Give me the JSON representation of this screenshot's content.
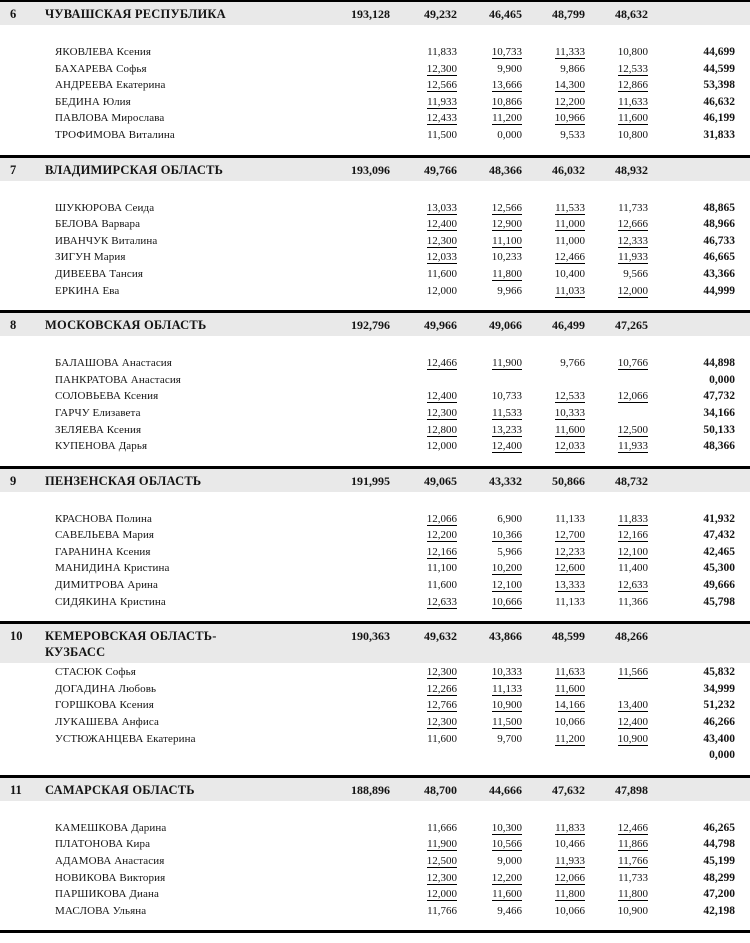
{
  "document": {
    "kind": "team-results-continuation-page"
  },
  "sections": [
    {
      "rank": "6",
      "team": "ЧУВАШСКАЯ РЕСПУБЛИКА",
      "team_total": "193,128",
      "team_scores": [
        "49,232",
        "46,465",
        "48,799",
        "48,632"
      ],
      "athletes": [
        {
          "name": "ЯКОВЛЕВА Ксения",
          "scores": [
            "11,833",
            "10,733",
            "11,333",
            "10,800"
          ],
          "underlined": [
            false,
            true,
            true,
            false
          ],
          "total": "44,699"
        },
        {
          "name": "БАХАРЕВА Софья",
          "scores": [
            "12,300",
            "9,900",
            "9,866",
            "12,533"
          ],
          "underlined": [
            true,
            false,
            false,
            true
          ],
          "total": "44,599"
        },
        {
          "name": "АНДРЕЕВА Екатерина",
          "scores": [
            "12,566",
            "13,666",
            "14,300",
            "12,866"
          ],
          "underlined": [
            true,
            true,
            true,
            true
          ],
          "total": "53,398"
        },
        {
          "name": "БЕДИНА Юлия",
          "scores": [
            "11,933",
            "10,866",
            "12,200",
            "11,633"
          ],
          "underlined": [
            true,
            true,
            true,
            true
          ],
          "total": "46,632"
        },
        {
          "name": "ПАВЛОВА Мирослава",
          "scores": [
            "12,433",
            "11,200",
            "10,966",
            "11,600"
          ],
          "underlined": [
            true,
            true,
            true,
            true
          ],
          "total": "46,199"
        },
        {
          "name": "ТРОФИМОВА Виталина",
          "scores": [
            "11,500",
            "0,000",
            "9,533",
            "10,800"
          ],
          "underlined": [
            false,
            false,
            false,
            false
          ],
          "total": "31,833"
        }
      ]
    },
    {
      "rank": "7",
      "team": "ВЛАДИМИРСКАЯ ОБЛАСТЬ",
      "team_total": "193,096",
      "team_scores": [
        "49,766",
        "48,366",
        "46,032",
        "48,932"
      ],
      "athletes": [
        {
          "name": "ШУКЮРОВА Сеида",
          "scores": [
            "13,033",
            "12,566",
            "11,533",
            "11,733"
          ],
          "underlined": [
            true,
            true,
            true,
            false
          ],
          "total": "48,865"
        },
        {
          "name": "БЕЛОВА Варвара",
          "scores": [
            "12,400",
            "12,900",
            "11,000",
            "12,666"
          ],
          "underlined": [
            true,
            true,
            true,
            true
          ],
          "total": "48,966"
        },
        {
          "name": "ИВАНЧУК Виталина",
          "scores": [
            "12,300",
            "11,100",
            "11,000",
            "12,333"
          ],
          "underlined": [
            true,
            true,
            false,
            true
          ],
          "total": "46,733"
        },
        {
          "name": "ЗИГУН Мария",
          "scores": [
            "12,033",
            "10,233",
            "12,466",
            "11,933"
          ],
          "underlined": [
            true,
            false,
            true,
            true
          ],
          "total": "46,665"
        },
        {
          "name": "ДИВЕЕВА Тансия",
          "scores": [
            "11,600",
            "11,800",
            "10,400",
            "9,566"
          ],
          "underlined": [
            false,
            true,
            false,
            false
          ],
          "total": "43,366"
        },
        {
          "name": "ЕРКИНА Ева",
          "scores": [
            "12,000",
            "9,966",
            "11,033",
            "12,000"
          ],
          "underlined": [
            false,
            false,
            true,
            true
          ],
          "total": "44,999"
        }
      ]
    },
    {
      "rank": "8",
      "team": "МОСКОВСКАЯ ОБЛАСТЬ",
      "team_total": "192,796",
      "team_scores": [
        "49,966",
        "49,066",
        "46,499",
        "47,265"
      ],
      "athletes": [
        {
          "name": "БАЛАШОВА Анастасия",
          "scores": [
            "12,466",
            "11,900",
            "9,766",
            "10,766"
          ],
          "underlined": [
            true,
            true,
            false,
            true
          ],
          "total": "44,898"
        },
        {
          "name": "ПАНКРАТОВА Анастасия",
          "scores": [
            "",
            "",
            "",
            ""
          ],
          "underlined": [
            false,
            false,
            false,
            false
          ],
          "total": "0,000"
        },
        {
          "name": "СОЛОВЬЕВА Ксения",
          "scores": [
            "12,400",
            "10,733",
            "12,533",
            "12,066"
          ],
          "underlined": [
            true,
            false,
            true,
            true
          ],
          "total": "47,732"
        },
        {
          "name": "ГАРЧУ Елизавета",
          "scores": [
            "12,300",
            "11,533",
            "10,333",
            ""
          ],
          "underlined": [
            true,
            true,
            true,
            false
          ],
          "total": "34,166"
        },
        {
          "name": "ЗЕЛЯЕВА Ксения",
          "scores": [
            "12,800",
            "13,233",
            "11,600",
            "12,500"
          ],
          "underlined": [
            true,
            true,
            true,
            true
          ],
          "total": "50,133"
        },
        {
          "name": "КУПЕНОВА Дарья",
          "scores": [
            "12,000",
            "12,400",
            "12,033",
            "11,933"
          ],
          "underlined": [
            false,
            true,
            true,
            true
          ],
          "total": "48,366"
        }
      ]
    },
    {
      "rank": "9",
      "team": "ПЕНЗЕНСКАЯ ОБЛАСТЬ",
      "team_total": "191,995",
      "team_scores": [
        "49,065",
        "43,332",
        "50,866",
        "48,732"
      ],
      "athletes": [
        {
          "name": "КРАСНОВА Полина",
          "scores": [
            "12,066",
            "6,900",
            "11,133",
            "11,833"
          ],
          "underlined": [
            true,
            false,
            false,
            true
          ],
          "total": "41,932"
        },
        {
          "name": "САВЕЛЬЕВА Мария",
          "scores": [
            "12,200",
            "10,366",
            "12,700",
            "12,166"
          ],
          "underlined": [
            true,
            true,
            true,
            true
          ],
          "total": "47,432"
        },
        {
          "name": "ГАРАНИНА Ксения",
          "scores": [
            "12,166",
            "5,966",
            "12,233",
            "12,100"
          ],
          "underlined": [
            true,
            false,
            true,
            true
          ],
          "total": "42,465"
        },
        {
          "name": "МАНИДИНА Кристина",
          "scores": [
            "11,100",
            "10,200",
            "12,600",
            "11,400"
          ],
          "underlined": [
            false,
            true,
            true,
            false
          ],
          "total": "45,300"
        },
        {
          "name": "ДИМИТРОВА Арина",
          "scores": [
            "11,600",
            "12,100",
            "13,333",
            "12,633"
          ],
          "underlined": [
            false,
            true,
            true,
            true
          ],
          "total": "49,666"
        },
        {
          "name": "СИДЯКИНА Кристина",
          "scores": [
            "12,633",
            "10,666",
            "11,133",
            "11,366"
          ],
          "underlined": [
            true,
            true,
            false,
            false
          ],
          "total": "45,798"
        }
      ]
    },
    {
      "rank": "10",
      "team": "КЕМЕРОВСКАЯ ОБЛАСТЬ-\nКУЗБАСС",
      "team_total": "190,363",
      "team_scores": [
        "49,632",
        "43,866",
        "48,599",
        "48,266"
      ],
      "athletes": [
        {
          "name": "СТАСЮК Софья",
          "scores": [
            "12,300",
            "10,333",
            "11,633",
            "11,566"
          ],
          "underlined": [
            true,
            true,
            true,
            true
          ],
          "total": "45,832"
        },
        {
          "name": "ДОГАДИНА Любовь",
          "scores": [
            "12,266",
            "11,133",
            "11,600",
            ""
          ],
          "underlined": [
            true,
            true,
            true,
            false
          ],
          "total": "34,999"
        },
        {
          "name": "ГОРШКОВА Ксения",
          "scores": [
            "12,766",
            "10,900",
            "14,166",
            "13,400"
          ],
          "underlined": [
            true,
            true,
            true,
            true
          ],
          "total": "51,232"
        },
        {
          "name": "ЛУКАШЕВА Анфиса",
          "scores": [
            "12,300",
            "11,500",
            "10,066",
            "12,400"
          ],
          "underlined": [
            true,
            true,
            false,
            true
          ],
          "total": "46,266"
        },
        {
          "name": "УСТЮЖАНЦЕВА Екатерина",
          "scores": [
            "11,600",
            "9,700",
            "11,200",
            "10,900"
          ],
          "underlined": [
            false,
            false,
            true,
            true
          ],
          "total": "43,400"
        },
        {
          "name": "",
          "scores": [
            "",
            "",
            "",
            ""
          ],
          "underlined": [
            false,
            false,
            false,
            false
          ],
          "total": "0,000"
        }
      ]
    },
    {
      "rank": "11",
      "team": "САМАРСКАЯ ОБЛАСТЬ",
      "team_total": "188,896",
      "team_scores": [
        "48,700",
        "44,666",
        "47,632",
        "47,898"
      ],
      "athletes": [
        {
          "name": "КАМЕШКОВА Дарина",
          "scores": [
            "11,666",
            "10,300",
            "11,833",
            "12,466"
          ],
          "underlined": [
            false,
            true,
            true,
            true
          ],
          "total": "46,265"
        },
        {
          "name": "ПЛАТОНОВА Кира",
          "scores": [
            "11,900",
            "10,566",
            "10,466",
            "11,866"
          ],
          "underlined": [
            true,
            true,
            false,
            true
          ],
          "total": "44,798"
        },
        {
          "name": "АДАМОВА Анастасия",
          "scores": [
            "12,500",
            "9,000",
            "11,933",
            "11,766"
          ],
          "underlined": [
            true,
            false,
            true,
            true
          ],
          "total": "45,199"
        },
        {
          "name": "НОВИКОВА Виктория",
          "scores": [
            "12,300",
            "12,200",
            "12,066",
            "11,733"
          ],
          "underlined": [
            true,
            true,
            true,
            false
          ],
          "total": "48,299"
        },
        {
          "name": "ПАРШИКОВА Диана",
          "scores": [
            "12,000",
            "11,600",
            "11,800",
            "11,800"
          ],
          "underlined": [
            true,
            true,
            true,
            true
          ],
          "total": "47,200"
        },
        {
          "name": "МАСЛОВА Ульяна",
          "scores": [
            "11,766",
            "9,466",
            "10,066",
            "10,900"
          ],
          "underlined": [
            false,
            false,
            false,
            false
          ],
          "total": "42,198"
        }
      ]
    }
  ]
}
